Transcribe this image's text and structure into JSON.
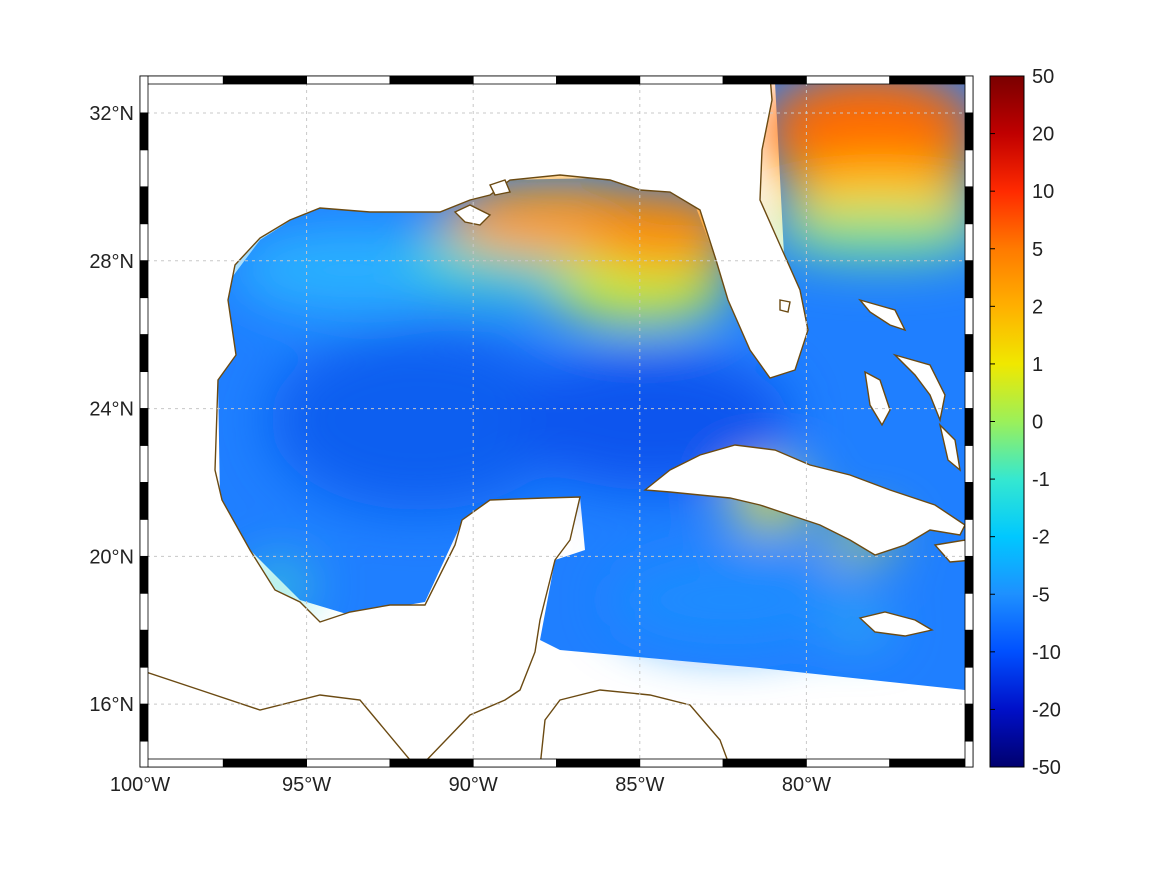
{
  "map": {
    "type": "heatmap",
    "projection": "equirectangular",
    "lon_range": [
      -100,
      -75
    ],
    "lat_range": [
      14.3,
      33
    ],
    "grid": true,
    "colormap": "jet",
    "colorbar_position": "right",
    "x_ticks": [
      {
        "value": -100,
        "label": "100°W"
      },
      {
        "value": -95,
        "label": "95°W"
      },
      {
        "value": -90,
        "label": "90°W"
      },
      {
        "value": -85,
        "label": "85°W"
      },
      {
        "value": -80,
        "label": "80°W"
      }
    ],
    "y_ticks": [
      {
        "value": 32,
        "label": "32°N"
      },
      {
        "value": 28,
        "label": "28°N"
      },
      {
        "value": 24,
        "label": "24°N"
      },
      {
        "value": 20,
        "label": "20°N"
      },
      {
        "value": 16,
        "label": "16°N"
      }
    ],
    "colorbar_ticks": [
      "50",
      "20",
      "10",
      "5",
      "2",
      "1",
      "0",
      "-1",
      "-2",
      "-5",
      "-10",
      "-20",
      "-50"
    ],
    "colors": {
      "land_fill": "#ffffff",
      "coastline": "#6b4a12",
      "grid": "#c8c8c8",
      "frame": "#000000",
      "ocean_base": "#1f7fff"
    },
    "colorbar_gradient": [
      "#7a0000",
      "#c00000",
      "#ff2a00",
      "#ff7a00",
      "#ffb000",
      "#f0e800",
      "#9bf05a",
      "#35e8d0",
      "#00c8ff",
      "#1e90ff",
      "#0050ff",
      "#0010c8",
      "#00006e"
    ]
  }
}
